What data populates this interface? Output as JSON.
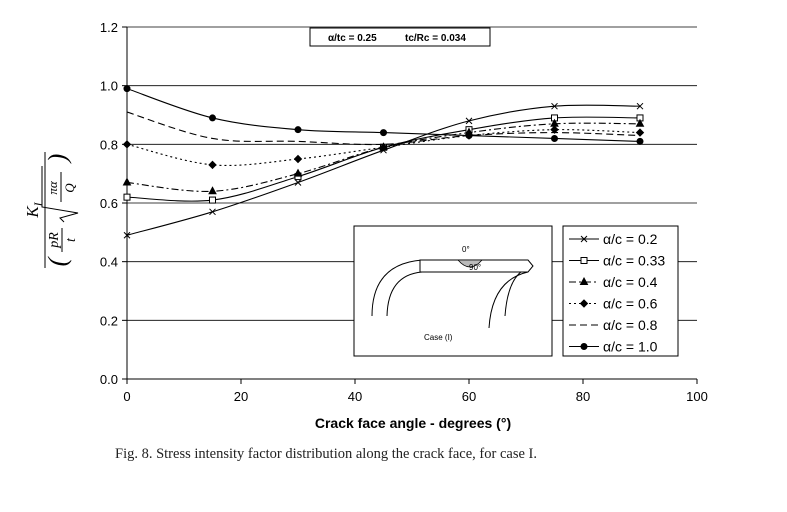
{
  "chart_data": {
    "type": "line",
    "xlabel": "Crack face angle - degrees (°)",
    "ylabel": "K_I / ((pR/t) sqrt(πα/Q))",
    "ylabel_parts": {
      "k": "K",
      "k_sub": "I",
      "num": "pR",
      "den": "t",
      "rad_num": "πα",
      "rad_den": "Q"
    },
    "xlim": [
      0,
      100
    ],
    "ylim": [
      0.0,
      1.2
    ],
    "xticks": [
      "0",
      "20",
      "40",
      "60",
      "80",
      "100"
    ],
    "yticks": [
      "0.0",
      "0.2",
      "0.4",
      "0.6",
      "0.8",
      "1.0",
      "1.2"
    ],
    "grid": "horizontal",
    "parameters": [
      "α/tᴄ = 0.25",
      "tᴄ/Rᴄ = 0.034"
    ],
    "x": [
      0,
      15,
      30,
      45,
      60,
      75,
      90
    ],
    "series": [
      {
        "name": "α/c = 0.2",
        "marker": "x",
        "dash": "solid",
        "values": [
          0.49,
          0.57,
          0.67,
          0.78,
          0.88,
          0.93,
          0.93
        ]
      },
      {
        "name": "α/c = 0.33",
        "marker": "square",
        "dash": "solid",
        "values": [
          0.62,
          0.61,
          0.69,
          0.79,
          0.85,
          0.89,
          0.89
        ]
      },
      {
        "name": "α/c = 0.4",
        "marker": "triangle",
        "dash": "dashdot",
        "values": [
          0.67,
          0.64,
          0.7,
          0.79,
          0.84,
          0.87,
          0.87
        ]
      },
      {
        "name": "α/c = 0.6",
        "marker": "diamond",
        "dash": "dotted",
        "values": [
          0.8,
          0.73,
          0.75,
          0.79,
          0.83,
          0.85,
          0.84
        ]
      },
      {
        "name": "α/c = 0.8",
        "marker": "none",
        "dash": "dashed",
        "values": [
          0.91,
          0.82,
          0.81,
          0.8,
          0.83,
          0.84,
          0.83
        ]
      },
      {
        "name": "α/c = 1.0",
        "marker": "circle",
        "dash": "solid",
        "values": [
          0.99,
          0.89,
          0.85,
          0.84,
          0.83,
          0.82,
          0.81
        ]
      }
    ],
    "inset": {
      "label": "Case (I)",
      "angle_top": "0°",
      "angle_side": "90°"
    }
  },
  "caption": "Fig. 8.  Stress intensity factor distribution along the crack face, for case I."
}
